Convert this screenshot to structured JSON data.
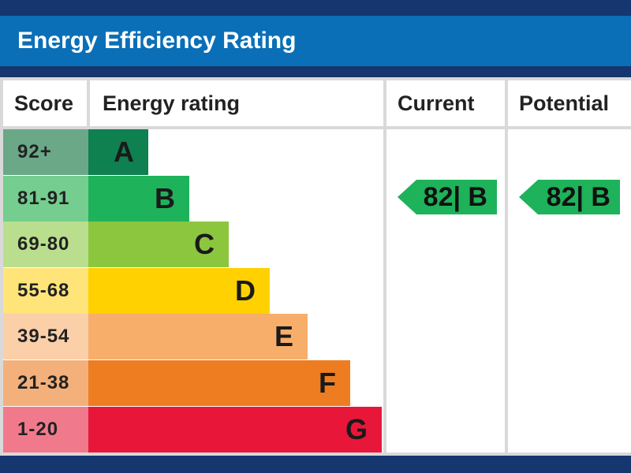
{
  "header": {
    "title": "Energy Efficiency Rating"
  },
  "table": {
    "col_score": "Score",
    "col_rating": "Energy rating",
    "col_current": "Current",
    "col_potential": "Potential"
  },
  "chart_data": {
    "type": "table",
    "title": "Energy Efficiency Rating",
    "bands": [
      {
        "score": "92+",
        "letter": "A",
        "color": "#0f8050",
        "score_bg": "#6aa888"
      },
      {
        "score": "81-91",
        "letter": "B",
        "color": "#1eb25a",
        "score_bg": "#75cd8f"
      },
      {
        "score": "69-80",
        "letter": "C",
        "color": "#8cc63f",
        "score_bg": "#b9df8e"
      },
      {
        "score": "55-68",
        "letter": "D",
        "color": "#ffd100",
        "score_bg": "#ffe47a"
      },
      {
        "score": "39-54",
        "letter": "E",
        "color": "#f7ae6a",
        "score_bg": "#fbcfa8"
      },
      {
        "score": "21-38",
        "letter": "F",
        "color": "#ee7d22",
        "score_bg": "#f4b07a"
      },
      {
        "score": "1-20",
        "letter": "G",
        "color": "#e8173a",
        "score_bg": "#f07a8c"
      }
    ],
    "current": {
      "value": 82,
      "letter": "B",
      "label": "82| B",
      "color": "#1eb25a"
    },
    "potential": {
      "value": 82,
      "letter": "B",
      "label": "82| B",
      "color": "#1eb25a"
    }
  }
}
